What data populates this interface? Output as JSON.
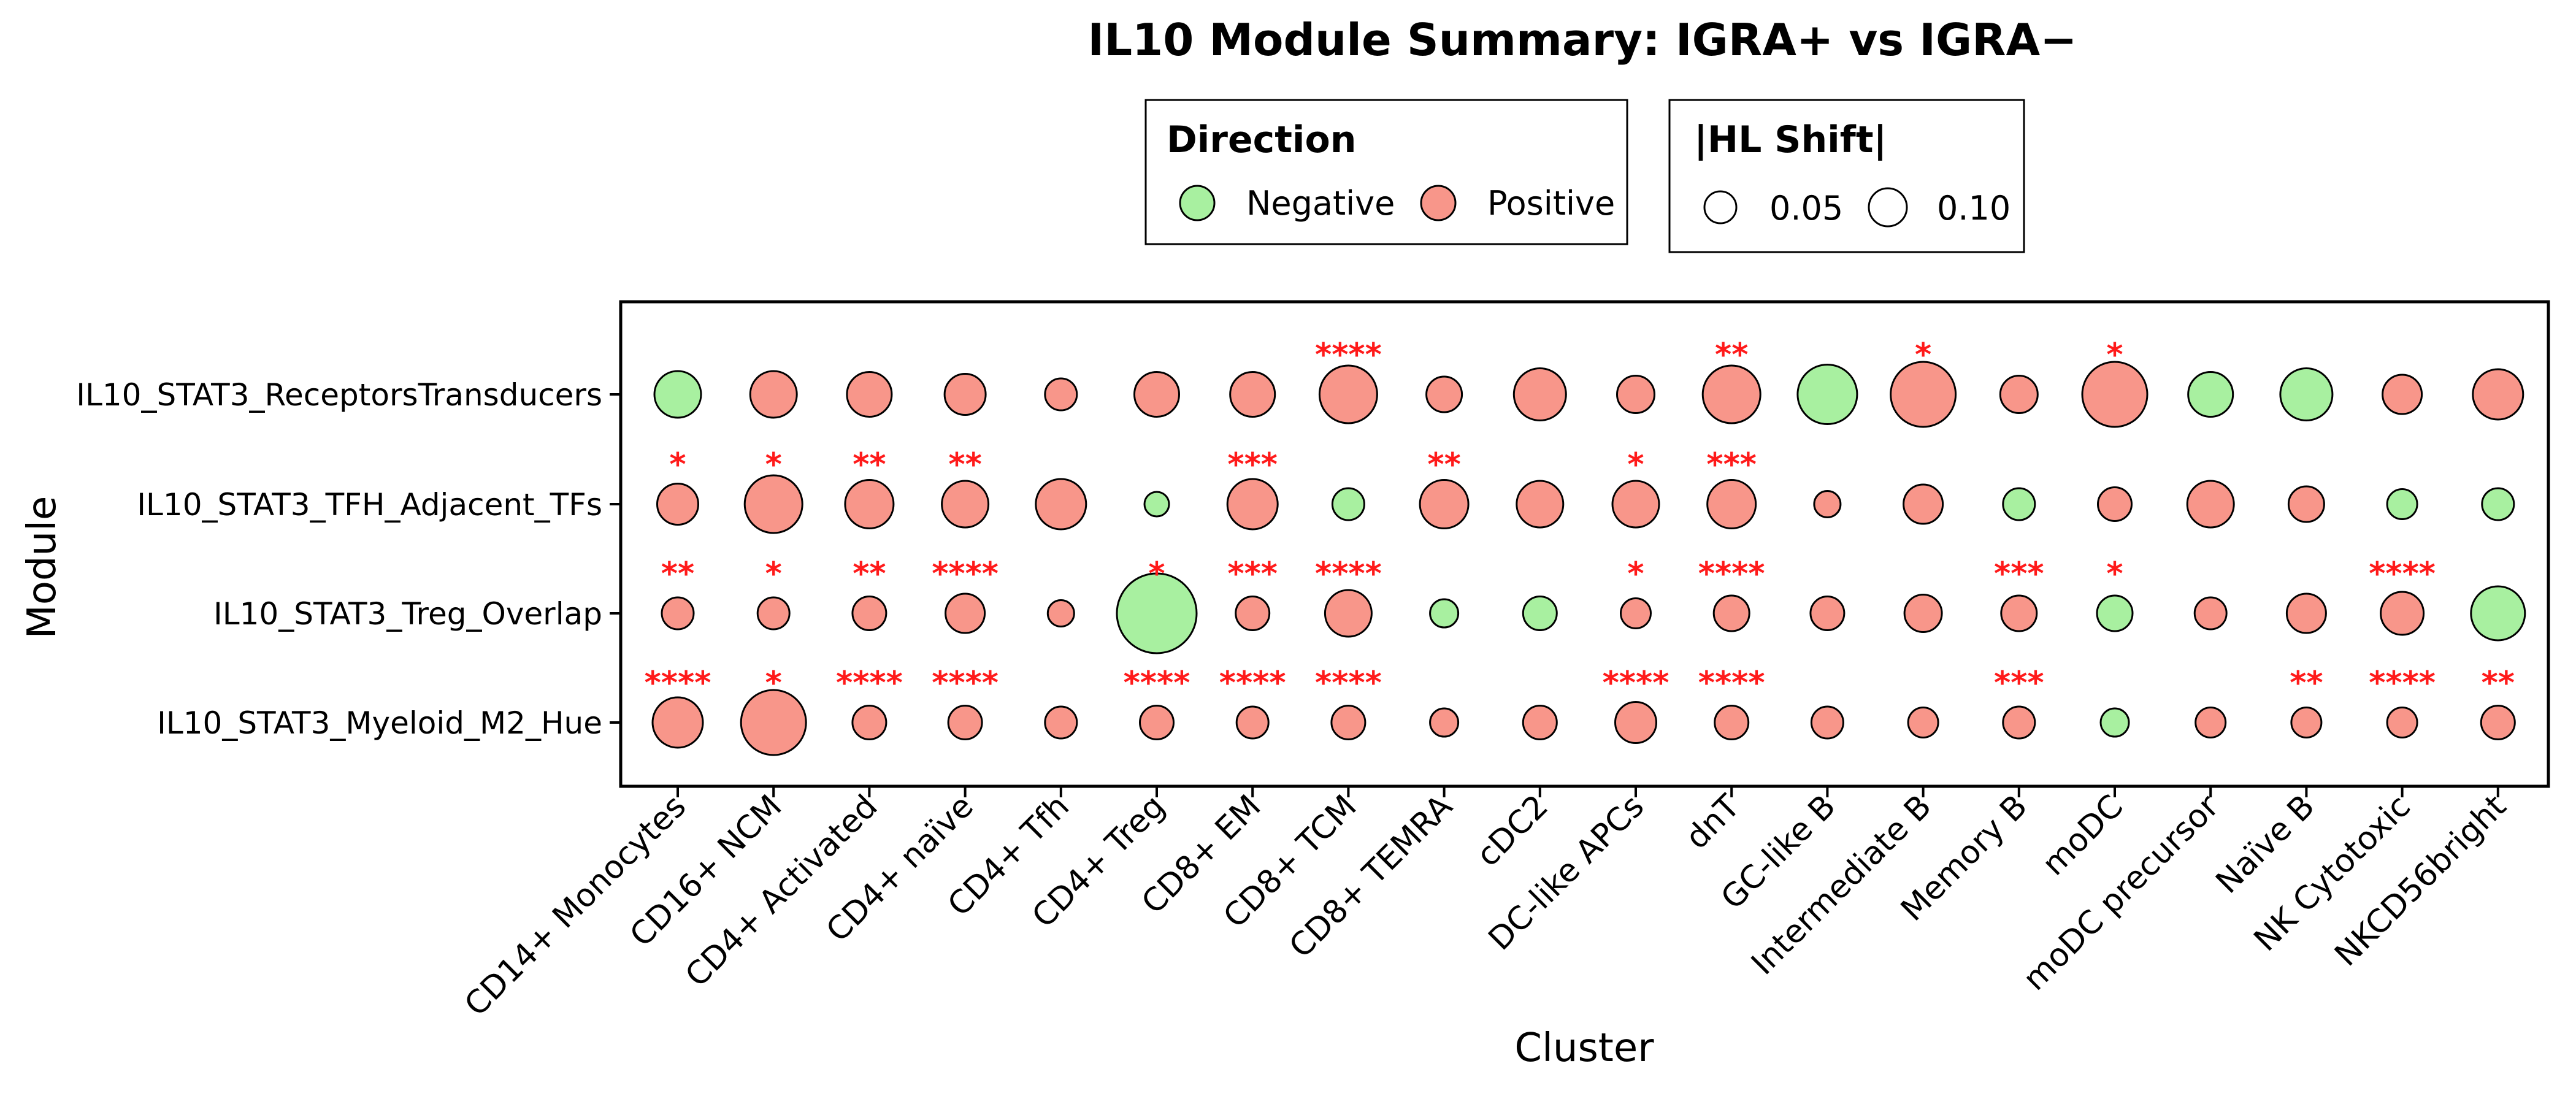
{
  "colors": {
    "negative": "#a8f0a0",
    "positive": "#f8968a",
    "stroke": "#000000",
    "significance": "#ff1a1a"
  },
  "chart_data": {
    "type": "scatter",
    "title": "IL10 Module Summary: IGRA+ vs IGRA−",
    "xlabel": "Cluster",
    "ylabel": "Module",
    "legend_placement": "top",
    "grid": false,
    "legends": {
      "direction": {
        "title": "Direction",
        "labels": [
          "Negative",
          "Positive"
        ]
      },
      "size": {
        "title": "|HL Shift|",
        "labels": [
          "0.05",
          "0.10"
        ],
        "values": [
          0.05,
          0.1
        ]
      }
    },
    "clusters": [
      "CD14+ Monocytes",
      "CD16+ NCM",
      "CD4+ Activated",
      "CD4+ naïve",
      "CD4+ Tfh",
      "CD4+ Treg",
      "CD8+ EM",
      "CD8+ TCM",
      "CD8+ TEMRA",
      "cDC2",
      "DC-like APCs",
      "dnT",
      "GC-like B",
      "Intermediate B",
      "Memory B",
      "moDC",
      "moDC precursor",
      "Naïve B",
      "NK Cytotoxic",
      "NKCD56bright"
    ],
    "modules": [
      "IL10_STAT3_ReceptorsTransducers",
      "IL10_STAT3_TFH_Adjacent_TFs",
      "IL10_STAT3_Treg_Overlap",
      "IL10_STAT3_Myeloid_M2_Hue"
    ],
    "series": [
      {
        "module": "IL10_STAT3_ReceptorsTransducers",
        "hl_shift": [
          0.08,
          0.08,
          0.075,
          0.065,
          0.04,
          0.075,
          0.075,
          0.11,
          0.05,
          0.095,
          0.055,
          0.11,
          0.115,
          0.13,
          0.055,
          0.13,
          0.075,
          0.095,
          0.06,
          0.09
        ],
        "direction": [
          "Negative",
          "Positive",
          "Positive",
          "Positive",
          "Positive",
          "Positive",
          "Positive",
          "Positive",
          "Positive",
          "Positive",
          "Positive",
          "Positive",
          "Negative",
          "Positive",
          "Positive",
          "Positive",
          "Negative",
          "Negative",
          "Positive",
          "Positive"
        ],
        "significance": [
          "",
          "",
          "",
          "",
          "",
          "",
          "",
          "****",
          "",
          "",
          "",
          "**",
          "",
          "*",
          "",
          "*",
          "",
          "",
          "",
          ""
        ]
      },
      {
        "module": "IL10_STAT3_TFH_Adjacent_TFs",
        "hl_shift": [
          0.065,
          0.11,
          0.085,
          0.08,
          0.09,
          0.02,
          0.09,
          0.04,
          0.085,
          0.08,
          0.08,
          0.085,
          0.025,
          0.06,
          0.04,
          0.045,
          0.08,
          0.05,
          0.035,
          0.04
        ],
        "direction": [
          "Positive",
          "Positive",
          "Positive",
          "Positive",
          "Positive",
          "Negative",
          "Positive",
          "Negative",
          "Positive",
          "Positive",
          "Positive",
          "Positive",
          "Positive",
          "Positive",
          "Negative",
          "Positive",
          "Positive",
          "Positive",
          "Negative",
          "Negative"
        ],
        "significance": [
          "*",
          "*",
          "**",
          "**",
          "",
          "",
          "***",
          "",
          "**",
          "",
          "*",
          "***",
          "",
          "",
          "",
          "",
          "",
          "",
          "",
          ""
        ]
      },
      {
        "module": "IL10_STAT3_Treg_Overlap",
        "hl_shift": [
          0.04,
          0.04,
          0.045,
          0.06,
          0.025,
          0.17,
          0.045,
          0.08,
          0.03,
          0.045,
          0.035,
          0.05,
          0.045,
          0.055,
          0.05,
          0.05,
          0.04,
          0.06,
          0.07,
          0.1
        ],
        "direction": [
          "Positive",
          "Positive",
          "Positive",
          "Positive",
          "Positive",
          "Negative",
          "Positive",
          "Positive",
          "Negative",
          "Negative",
          "Positive",
          "Positive",
          "Positive",
          "Positive",
          "Positive",
          "Negative",
          "Positive",
          "Positive",
          "Positive",
          "Negative"
        ],
        "significance": [
          "**",
          "*",
          "**",
          "****",
          "",
          "*",
          "***",
          "****",
          "",
          "",
          "*",
          "****",
          "",
          "",
          "***",
          "*",
          "",
          "",
          "****",
          ""
        ]
      },
      {
        "module": "IL10_STAT3_Myeloid_M2_Hue",
        "hl_shift": [
          0.09,
          0.13,
          0.045,
          0.045,
          0.04,
          0.045,
          0.04,
          0.045,
          0.03,
          0.045,
          0.065,
          0.045,
          0.04,
          0.035,
          0.04,
          0.03,
          0.035,
          0.035,
          0.035,
          0.045
        ],
        "direction": [
          "Positive",
          "Positive",
          "Positive",
          "Positive",
          "Positive",
          "Positive",
          "Positive",
          "Positive",
          "Positive",
          "Positive",
          "Positive",
          "Positive",
          "Positive",
          "Positive",
          "Positive",
          "Negative",
          "Positive",
          "Positive",
          "Positive",
          "Positive"
        ],
        "significance": [
          "****",
          "*",
          "****",
          "****",
          "",
          "****",
          "****",
          "****",
          "",
          "",
          "****",
          "****",
          "",
          "",
          "***",
          "",
          "",
          "**",
          "****",
          "**"
        ]
      }
    ]
  }
}
